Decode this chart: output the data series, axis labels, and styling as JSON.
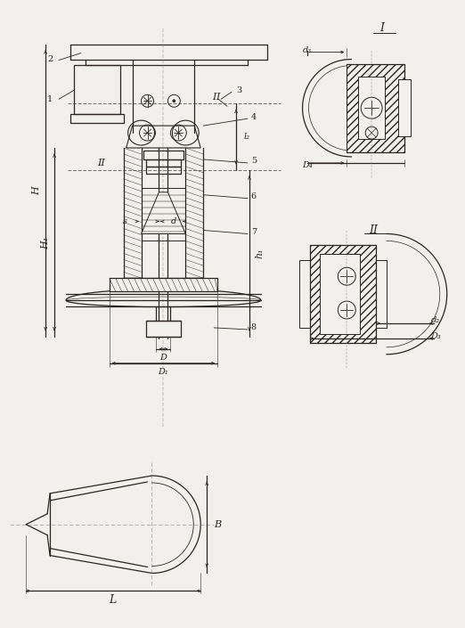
{
  "bg_color": "#f2f0ec",
  "line_color": "#2a2520",
  "fig_width": 5.22,
  "fig_height": 7.05,
  "labels": {
    "part1": "1",
    "part2": "2",
    "part3": "3",
    "part4": "4",
    "part5": "5",
    "part6": "6",
    "part7": "7",
    "part8": "8",
    "H": "H",
    "H1": "H₁",
    "l2": "l₂",
    "h1": "h₁",
    "s": "s",
    "d": "d",
    "D": "D",
    "D1": "D₁",
    "secI": "I",
    "secII": "II",
    "secI_r": "I",
    "secII_r": "II",
    "d2": "d₂",
    "d3": "d₃",
    "D3": "D₃",
    "D4": "D₄",
    "B": "B",
    "L": "L"
  }
}
